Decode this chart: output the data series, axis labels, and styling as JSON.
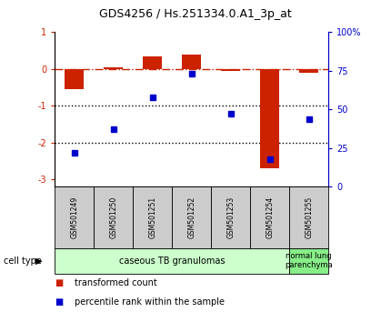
{
  "title": "GDS4256 / Hs.251334.0.A1_3p_at",
  "samples": [
    "GSM501249",
    "GSM501250",
    "GSM501251",
    "GSM501252",
    "GSM501253",
    "GSM501254",
    "GSM501255"
  ],
  "red_values": [
    -0.55,
    0.05,
    0.35,
    0.4,
    -0.05,
    -2.7,
    -0.1
  ],
  "blue_values_pct": [
    22,
    37,
    58,
    73,
    47,
    18,
    44
  ],
  "ylim_left": [
    -3.2,
    1.0
  ],
  "ylim_right": [
    0,
    100
  ],
  "yticks_left": [
    1,
    0,
    -1,
    -2,
    -3
  ],
  "yticks_right": [
    0,
    25,
    50,
    75,
    100
  ],
  "ytick_labels_right": [
    "0",
    "25",
    "50",
    "75",
    "100%"
  ],
  "hline_dash": 0,
  "hlines_dot": [
    -1,
    -2
  ],
  "bar_color": "#cc2200",
  "dot_color": "#0000cc",
  "group1_label": "caseous TB granulomas",
  "group2_label": "normal lung\nparenchyma",
  "group1_bg": "#ccffcc",
  "group2_bg": "#88ee88",
  "legend_red": "transformed count",
  "legend_blue": "percentile rank within the sample",
  "cell_type_label": "cell type",
  "bar_width": 0.5
}
